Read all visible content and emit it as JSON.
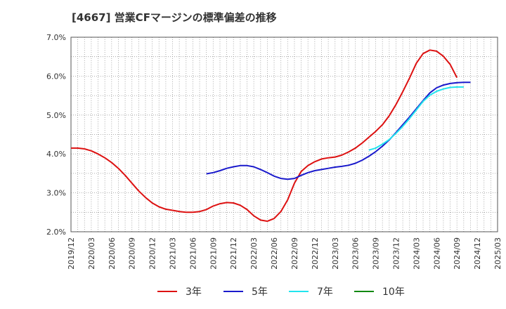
{
  "chart_data": {
    "type": "line",
    "title": "[4667]  営業CFマージンの標準偏差の推移",
    "xlabel": "",
    "ylabel": "",
    "x_ticks": [
      "2019/12",
      "2020/03",
      "2020/06",
      "2020/09",
      "2020/12",
      "2021/03",
      "2021/06",
      "2021/09",
      "2021/12",
      "2022/03",
      "2022/06",
      "2022/09",
      "2022/12",
      "2023/03",
      "2023/06",
      "2023/09",
      "2023/12",
      "2024/03",
      "2024/06",
      "2024/09",
      "2024/12",
      "2025/03"
    ],
    "y_ticks": [
      "2.0%",
      "3.0%",
      "4.0%",
      "5.0%",
      "6.0%",
      "7.0%"
    ],
    "ylim": [
      2.0,
      7.0
    ],
    "xlim": [
      "2019/12",
      "2025/03"
    ],
    "grid": true,
    "legend_position": "bottom",
    "series": [
      {
        "name": "3年",
        "color": "#dd1111",
        "start": "2019/12",
        "values": [
          4.15,
          4.15,
          4.13,
          4.08,
          4.0,
          3.9,
          3.78,
          3.63,
          3.45,
          3.25,
          3.05,
          2.88,
          2.74,
          2.64,
          2.58,
          2.55,
          2.52,
          2.5,
          2.5,
          2.52,
          2.57,
          2.66,
          2.72,
          2.75,
          2.74,
          2.68,
          2.57,
          2.41,
          2.3,
          2.27,
          2.34,
          2.52,
          2.82,
          3.25,
          3.55,
          3.7,
          3.8,
          3.87,
          3.9,
          3.92,
          3.97,
          4.05,
          4.15,
          4.28,
          4.43,
          4.58,
          4.75,
          4.98,
          5.27,
          5.6,
          5.95,
          6.33,
          6.58,
          6.67,
          6.64,
          6.51,
          6.3,
          5.96
        ]
      },
      {
        "name": "5年",
        "color": "#1a1acc",
        "start": "2021/08",
        "values": [
          3.49,
          3.52,
          3.57,
          3.63,
          3.67,
          3.7,
          3.7,
          3.67,
          3.6,
          3.52,
          3.43,
          3.37,
          3.35,
          3.37,
          3.45,
          3.52,
          3.57,
          3.6,
          3.63,
          3.66,
          3.68,
          3.71,
          3.76,
          3.84,
          3.94,
          4.06,
          4.2,
          4.36,
          4.55,
          4.75,
          4.95,
          5.16,
          5.37,
          5.57,
          5.7,
          5.77,
          5.81,
          5.83,
          5.84,
          5.84
        ]
      },
      {
        "name": "7年",
        "color": "#22e5ee",
        "start": "2023/08",
        "values": [
          4.1,
          4.15,
          4.25,
          4.37,
          4.53,
          4.71,
          4.91,
          5.13,
          5.35,
          5.51,
          5.61,
          5.67,
          5.71,
          5.72,
          5.72
        ]
      },
      {
        "name": "10年",
        "color": "#118811",
        "start": "2024/09",
        "values": []
      }
    ]
  }
}
